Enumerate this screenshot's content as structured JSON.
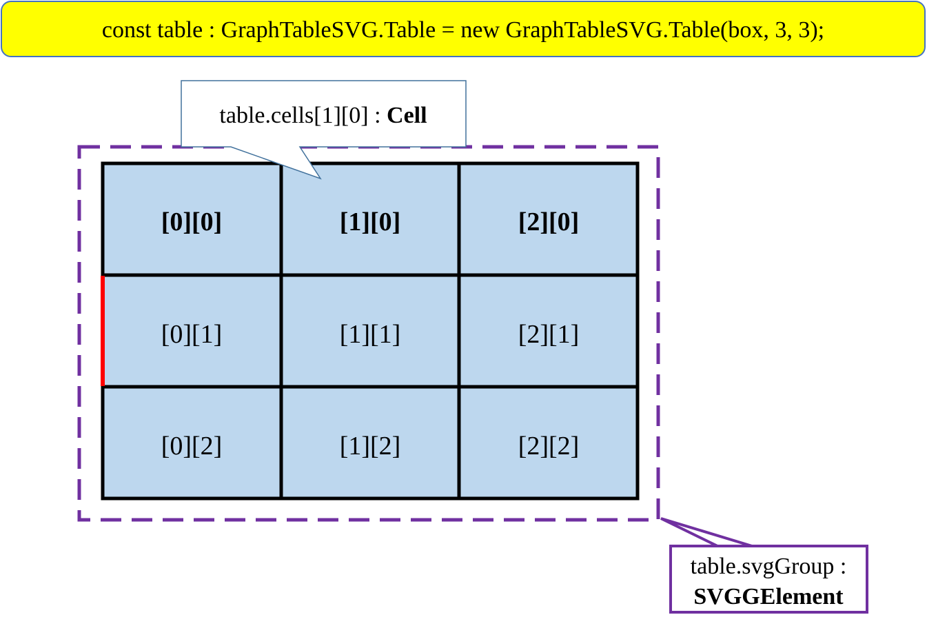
{
  "code_line": "const table : GraphTableSVG.Table = new GraphTableSVG.Table(box, 3, 3);",
  "cell_callout": {
    "prefix": "table.cells[1][0] : ",
    "type": "Cell"
  },
  "group_callout": {
    "line1": "table.svgGroup :",
    "line2": "SVGGElement"
  },
  "table": {
    "rows": [
      [
        "[0][0]",
        "[1][0]",
        "[2][0]"
      ],
      [
        "[0][1]",
        "[1][1]",
        "[2][1]"
      ],
      [
        "[0][2]",
        "[1][2]",
        "[2][2]"
      ]
    ],
    "bold_rows": [
      0
    ]
  },
  "colors": {
    "code_box_fill": "#ffff00",
    "code_box_stroke": "#4472c4",
    "cell_fill": "#bdd7ee",
    "grid_stroke": "#000000",
    "highlight_border": "#ff0000",
    "group_border": "#7030a0",
    "cell_callout_stroke": "#41719c"
  }
}
